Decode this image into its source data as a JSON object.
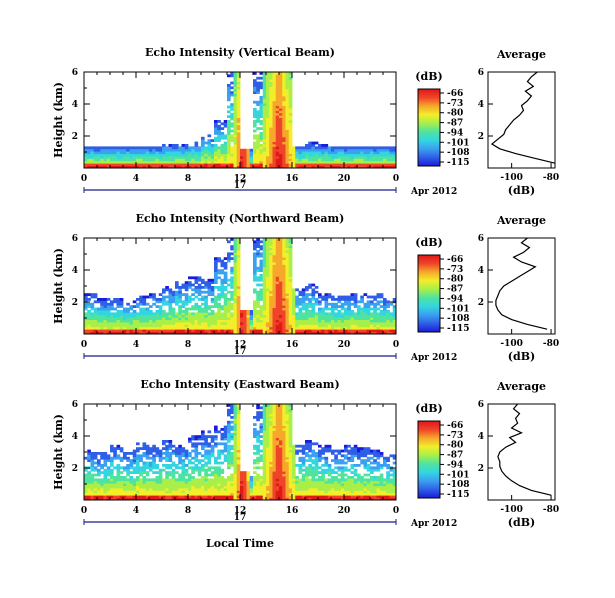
{
  "colors": {
    "scale": [
      "#1a1adc",
      "#2f5fe6",
      "#3aa0f0",
      "#33d6e0",
      "#4fe3a0",
      "#a8ef4a",
      "#f2ee2a",
      "#f5a82a",
      "#f0442a",
      "#e01818"
    ],
    "axis": "#000000",
    "time_axis": "#1b1b8a"
  },
  "x_label": "Local Time",
  "date_label": "Apr 2012",
  "time_axis_day": "17",
  "colorbar": {
    "unit": "(dB)",
    "ticks": [
      "-66",
      "-73",
      "-80",
      "-87",
      "-94",
      "-101",
      "-108",
      "-115"
    ]
  },
  "profile": {
    "title": "Average",
    "xlabel": "(dB)",
    "xticks": [
      "-100",
      "-80"
    ],
    "yticks": [
      "2",
      "4",
      "6"
    ]
  },
  "panels": [
    {
      "title": "Echo Intensity (Vertical Beam)",
      "ylabel": "Height (km)",
      "yticks": [
        "2",
        "4",
        "6"
      ],
      "xticks": [
        "0",
        "4",
        "8",
        "12",
        "16",
        "20",
        "0"
      ]
    },
    {
      "title": "Echo Intensity (Northward Beam)",
      "ylabel": "Height (km)",
      "yticks": [
        "2",
        "4",
        "6"
      ],
      "xticks": [
        "0",
        "4",
        "8",
        "12",
        "16",
        "20",
        "0"
      ]
    },
    {
      "title": "Echo Intensity (Eastward Beam)",
      "ylabel": "Height (km)",
      "yticks": [
        "2",
        "4",
        "6"
      ],
      "xticks": [
        "0",
        "4",
        "8",
        "12",
        "16",
        "20",
        "0"
      ]
    }
  ],
  "chart_data": [
    {
      "type": "heatmap",
      "title": "Echo Intensity (Vertical Beam)",
      "xlabel": "",
      "ylabel": "Height (km)",
      "xlim": [
        0,
        24
      ],
      "ylim": [
        0,
        6
      ],
      "colorbar_range_db": [
        -115,
        -66
      ],
      "cloud_top_km": [
        1.4,
        1.4,
        1.4,
        1.4,
        1.4,
        1.4,
        1.5,
        1.5,
        1.6,
        2.1,
        3.0,
        6,
        1.2,
        6,
        6,
        6,
        1.4,
        1.6,
        1.5,
        1.4,
        1.4,
        1.4,
        1.4,
        1.4
      ],
      "average_profile": {
        "height_km": [
          0.3,
          0.6,
          0.9,
          1.2,
          1.5,
          1.8,
          2.1,
          2.4,
          2.7,
          3.0,
          3.3,
          3.6,
          3.9,
          4.2,
          4.5,
          4.8,
          5.1,
          5.4,
          5.7,
          6.0
        ],
        "db": [
          -78,
          -88,
          -98,
          -106,
          -110,
          -107,
          -104,
          -103,
          -101,
          -99,
          -96,
          -94,
          -95,
          -92,
          -90,
          -93,
          -89,
          -92,
          -90,
          -87
        ]
      }
    },
    {
      "type": "heatmap",
      "title": "Echo Intensity (Northward Beam)",
      "xlabel": "",
      "ylabel": "Height (km)",
      "xlim": [
        0,
        24
      ],
      "ylim": [
        0,
        6
      ],
      "colorbar_range_db": [
        -115,
        -66
      ],
      "cloud_top_km": [
        2.5,
        2.2,
        2.3,
        2.1,
        2.4,
        2.6,
        3.0,
        3.3,
        3.6,
        3.5,
        4.8,
        6,
        1.5,
        6,
        6,
        6,
        2.8,
        3.2,
        2.5,
        2.4,
        2.5,
        2.6,
        2.5,
        2.3
      ],
      "average_profile": {
        "height_km": [
          0.3,
          0.6,
          0.9,
          1.2,
          1.5,
          1.8,
          2.1,
          2.4,
          2.7,
          3.0,
          3.3,
          3.6,
          3.9,
          4.2,
          4.5,
          4.8,
          5.1,
          5.4,
          5.7,
          6.0
        ],
        "db": [
          -82,
          -92,
          -100,
          -105,
          -107,
          -108,
          -108,
          -107,
          -106,
          -104,
          -100,
          -96,
          -92,
          -88,
          -95,
          -99,
          -94,
          -91,
          -95,
          -92
        ]
      }
    },
    {
      "type": "heatmap",
      "title": "Echo Intensity (Eastward Beam)",
      "xlabel": "Local Time",
      "ylabel": "Height (km)",
      "xlim": [
        0,
        24
      ],
      "ylim": [
        0,
        6
      ],
      "colorbar_range_db": [
        -115,
        -66
      ],
      "cloud_top_km": [
        3.2,
        3.0,
        3.4,
        3.1,
        3.6,
        3.4,
        3.8,
        3.5,
        4.0,
        4.3,
        4.6,
        6,
        1.8,
        6,
        6,
        6,
        3.5,
        3.8,
        3.4,
        3.2,
        3.4,
        3.3,
        3.1,
        2.9
      ],
      "average_profile": {
        "height_km": [
          0.3,
          0.6,
          0.9,
          1.2,
          1.5,
          1.8,
          2.1,
          2.4,
          2.7,
          3.0,
          3.3,
          3.6,
          3.9,
          4.2,
          4.5,
          4.8,
          5.1,
          5.4,
          5.7,
          6.0
        ],
        "db": [
          -80,
          -90,
          -96,
          -100,
          -103,
          -105,
          -106,
          -106,
          -107,
          -106,
          -103,
          -98,
          -101,
          -95,
          -100,
          -97,
          -98,
          -96,
          -99,
          -97
        ]
      }
    }
  ]
}
